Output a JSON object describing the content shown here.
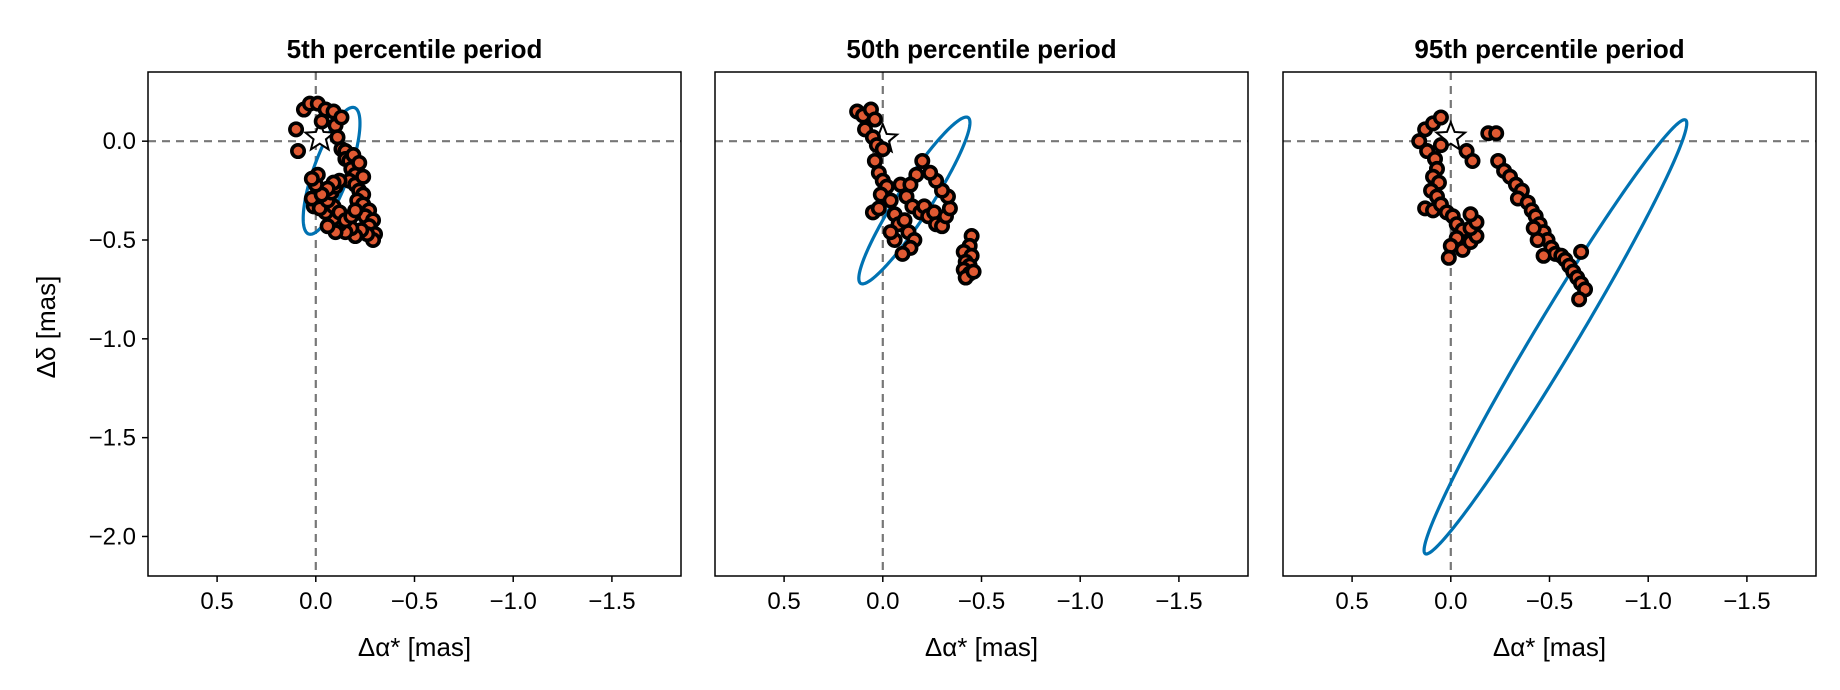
{
  "figure": {
    "ylabel": "Δδ [mas]",
    "xlabel": "Δα* [mas]",
    "colors": {
      "orbit": "#0072b2",
      "marker_fill": "#e05a33",
      "marker_edge": "#000000",
      "refline": "#777777"
    }
  },
  "chart_data": [
    {
      "type": "scatter",
      "title": "5th percentile period",
      "xlabel": "Δα* [mas]",
      "ylabel": "Δδ [mas]",
      "xlim": [
        0.85,
        -1.85
      ],
      "ylim": [
        -2.2,
        0.35
      ],
      "xticks": [
        0.5,
        0.0,
        -0.5,
        -1.0,
        -1.5
      ],
      "xtick_labels": [
        "0.5",
        "0.0",
        "−0.5",
        "−1.0",
        "−1.5"
      ],
      "yticks": [
        0.0,
        -0.5,
        -1.0,
        -1.5,
        -2.0
      ],
      "ytick_labels": [
        "0.0",
        "−0.5",
        "−1.0",
        "−1.5",
        "−2.0"
      ],
      "reference_lines": {
        "x": 0.0,
        "y": 0.0
      },
      "star": {
        "x": -0.02,
        "y": 0.02
      },
      "orbit": {
        "center": [
          -0.08,
          -0.15
        ],
        "a": 0.34,
        "b": 0.09,
        "angle_deg": -70
      },
      "points": [
        {
          "x": 0.1,
          "y": 0.06
        },
        {
          "x": 0.06,
          "y": 0.16
        },
        {
          "x": 0.03,
          "y": 0.19
        },
        {
          "x": -0.01,
          "y": 0.19
        },
        {
          "x": 0.09,
          "y": -0.05
        },
        {
          "x": -0.03,
          "y": 0.1
        },
        {
          "x": -0.05,
          "y": 0.16
        },
        {
          "x": -0.09,
          "y": 0.15
        },
        {
          "x": -0.1,
          "y": 0.08
        },
        {
          "x": -0.13,
          "y": 0.12
        },
        {
          "x": -0.11,
          "y": 0.02
        },
        {
          "x": -0.13,
          "y": -0.04
        },
        {
          "x": -0.15,
          "y": -0.05
        },
        {
          "x": -0.15,
          "y": -0.09
        },
        {
          "x": -0.17,
          "y": -0.1
        },
        {
          "x": -0.18,
          "y": -0.14
        },
        {
          "x": -0.2,
          "y": -0.17
        },
        {
          "x": -0.17,
          "y": -0.2
        },
        {
          "x": -0.2,
          "y": -0.22
        },
        {
          "x": -0.22,
          "y": -0.25
        },
        {
          "x": -0.24,
          "y": -0.27
        },
        {
          "x": -0.21,
          "y": -0.3
        },
        {
          "x": -0.24,
          "y": -0.32
        },
        {
          "x": -0.27,
          "y": -0.35
        },
        {
          "x": -0.25,
          "y": -0.38
        },
        {
          "x": -0.29,
          "y": -0.4
        },
        {
          "x": -0.27,
          "y": -0.43
        },
        {
          "x": -0.3,
          "y": -0.47
        },
        {
          "x": -0.29,
          "y": -0.5
        },
        {
          "x": -0.26,
          "y": -0.47
        },
        {
          "x": -0.23,
          "y": -0.45
        },
        {
          "x": -0.2,
          "y": -0.48
        },
        {
          "x": -0.18,
          "y": -0.44
        },
        {
          "x": -0.15,
          "y": -0.46
        },
        {
          "x": -0.12,
          "y": -0.42
        },
        {
          "x": -0.1,
          "y": -0.46
        },
        {
          "x": -0.09,
          "y": -0.39
        },
        {
          "x": -0.06,
          "y": -0.43
        },
        {
          "x": -0.05,
          "y": -0.36
        },
        {
          "x": -0.09,
          "y": -0.33
        },
        {
          "x": -0.12,
          "y": -0.36
        },
        {
          "x": -0.15,
          "y": -0.4
        },
        {
          "x": -0.18,
          "y": -0.38
        },
        {
          "x": -0.2,
          "y": -0.35
        },
        {
          "x": 0.01,
          "y": -0.33
        },
        {
          "x": 0.02,
          "y": -0.29
        },
        {
          "x": -0.02,
          "y": -0.34
        },
        {
          "x": -0.06,
          "y": -0.3
        },
        {
          "x": -0.08,
          "y": -0.26
        },
        {
          "x": -0.1,
          "y": -0.23
        },
        {
          "x": -0.12,
          "y": -0.2
        },
        {
          "x": -0.09,
          "y": -0.21
        },
        {
          "x": -0.06,
          "y": -0.24
        },
        {
          "x": -0.03,
          "y": -0.27
        },
        {
          "x": 0.0,
          "y": -0.22
        },
        {
          "x": -0.01,
          "y": -0.17
        },
        {
          "x": 0.02,
          "y": -0.19
        },
        {
          "x": -0.19,
          "y": -0.07
        },
        {
          "x": -0.22,
          "y": -0.11
        },
        {
          "x": -0.24,
          "y": -0.18
        }
      ]
    },
    {
      "type": "scatter",
      "title": "50th percentile period",
      "xlabel": "Δα* [mas]",
      "ylabel": "",
      "xlim": [
        0.85,
        -1.85
      ],
      "ylim": [
        -2.2,
        0.35
      ],
      "xticks": [
        0.5,
        0.0,
        -0.5,
        -1.0,
        -1.5
      ],
      "xtick_labels": [
        "0.5",
        "0.0",
        "−0.5",
        "−1.0",
        "−1.5"
      ],
      "yticks": [],
      "ytick_labels": [],
      "reference_lines": {
        "x": 0.0,
        "y": 0.0
      },
      "star": {
        "x": 0.0,
        "y": 0.01
      },
      "orbit": {
        "center": [
          -0.16,
          -0.3
        ],
        "a": 0.5,
        "b": 0.085,
        "angle_deg": -57
      },
      "points": [
        {
          "x": 0.13,
          "y": 0.15
        },
        {
          "x": 0.1,
          "y": 0.13
        },
        {
          "x": 0.06,
          "y": 0.16
        },
        {
          "x": 0.04,
          "y": 0.11
        },
        {
          "x": 0.09,
          "y": 0.06
        },
        {
          "x": 0.05,
          "y": 0.02
        },
        {
          "x": 0.03,
          "y": -0.02
        },
        {
          "x": 0.0,
          "y": -0.04
        },
        {
          "x": 0.04,
          "y": -0.1
        },
        {
          "x": 0.02,
          "y": -0.16
        },
        {
          "x": 0.0,
          "y": -0.2
        },
        {
          "x": -0.02,
          "y": -0.23
        },
        {
          "x": 0.01,
          "y": -0.27
        },
        {
          "x": 0.05,
          "y": -0.36
        },
        {
          "x": 0.02,
          "y": -0.34
        },
        {
          "x": -0.04,
          "y": -0.3
        },
        {
          "x": -0.06,
          "y": -0.37
        },
        {
          "x": -0.08,
          "y": -0.42
        },
        {
          "x": -0.11,
          "y": -0.4
        },
        {
          "x": -0.13,
          "y": -0.46
        },
        {
          "x": -0.16,
          "y": -0.5
        },
        {
          "x": -0.14,
          "y": -0.54
        },
        {
          "x": -0.1,
          "y": -0.57
        },
        {
          "x": -0.06,
          "y": -0.5
        },
        {
          "x": -0.04,
          "y": -0.46
        },
        {
          "x": -0.09,
          "y": -0.22
        },
        {
          "x": -0.12,
          "y": -0.28
        },
        {
          "x": -0.15,
          "y": -0.33
        },
        {
          "x": -0.19,
          "y": -0.36
        },
        {
          "x": -0.21,
          "y": -0.33
        },
        {
          "x": -0.23,
          "y": -0.38
        },
        {
          "x": -0.26,
          "y": -0.36
        },
        {
          "x": -0.27,
          "y": -0.42
        },
        {
          "x": -0.3,
          "y": -0.43
        },
        {
          "x": -0.32,
          "y": -0.38
        },
        {
          "x": -0.34,
          "y": -0.34
        },
        {
          "x": -0.33,
          "y": -0.28
        },
        {
          "x": -0.3,
          "y": -0.25
        },
        {
          "x": -0.27,
          "y": -0.2
        },
        {
          "x": -0.24,
          "y": -0.16
        },
        {
          "x": -0.2,
          "y": -0.1
        },
        {
          "x": -0.17,
          "y": -0.17
        },
        {
          "x": -0.14,
          "y": -0.22
        },
        {
          "x": -0.45,
          "y": -0.48
        },
        {
          "x": -0.44,
          "y": -0.53
        },
        {
          "x": -0.41,
          "y": -0.56
        },
        {
          "x": -0.45,
          "y": -0.58
        },
        {
          "x": -0.42,
          "y": -0.61
        },
        {
          "x": -0.44,
          "y": -0.63
        },
        {
          "x": -0.41,
          "y": -0.65
        },
        {
          "x": -0.44,
          "y": -0.67
        },
        {
          "x": -0.42,
          "y": -0.69
        },
        {
          "x": -0.46,
          "y": -0.66
        }
      ]
    },
    {
      "type": "scatter",
      "title": "95th percentile period",
      "xlabel": "Δα* [mas]",
      "ylabel": "",
      "xlim": [
        0.85,
        -1.85
      ],
      "ylim": [
        -2.2,
        0.35
      ],
      "xticks": [
        0.5,
        0.0,
        -0.5,
        -1.0,
        -1.5
      ],
      "xtick_labels": [
        "0.5",
        "0.0",
        "−0.5",
        "−1.0",
        "−1.5"
      ],
      "yticks": [],
      "ytick_labels": [],
      "reference_lines": {
        "x": 0.0,
        "y": 0.0
      },
      "star": {
        "x": 0.0,
        "y": 0.02
      },
      "orbit": {
        "center": [
          -0.53,
          -0.99
        ],
        "a": 1.28,
        "b": 0.105,
        "angle_deg": -59
      },
      "points": [
        {
          "x": 0.16,
          "y": 0.0
        },
        {
          "x": 0.13,
          "y": 0.06
        },
        {
          "x": 0.09,
          "y": 0.09
        },
        {
          "x": 0.05,
          "y": 0.12
        },
        {
          "x": 0.12,
          "y": -0.05
        },
        {
          "x": 0.08,
          "y": -0.09
        },
        {
          "x": 0.05,
          "y": -0.02
        },
        {
          "x": 0.07,
          "y": -0.14
        },
        {
          "x": 0.09,
          "y": -0.18
        },
        {
          "x": 0.06,
          "y": -0.21
        },
        {
          "x": 0.1,
          "y": -0.25
        },
        {
          "x": 0.07,
          "y": -0.28
        },
        {
          "x": 0.13,
          "y": -0.34
        },
        {
          "x": 0.09,
          "y": -0.35
        },
        {
          "x": 0.05,
          "y": -0.32
        },
        {
          "x": 0.02,
          "y": -0.36
        },
        {
          "x": -0.01,
          "y": -0.38
        },
        {
          "x": -0.03,
          "y": -0.42
        },
        {
          "x": -0.06,
          "y": -0.45
        },
        {
          "x": -0.03,
          "y": -0.49
        },
        {
          "x": 0.0,
          "y": -0.53
        },
        {
          "x": -0.06,
          "y": -0.55
        },
        {
          "x": -0.1,
          "y": -0.51
        },
        {
          "x": -0.13,
          "y": -0.48
        },
        {
          "x": -0.1,
          "y": -0.44
        },
        {
          "x": -0.13,
          "y": -0.41
        },
        {
          "x": -0.1,
          "y": -0.37
        },
        {
          "x": 0.01,
          "y": -0.59
        },
        {
          "x": -0.08,
          "y": -0.05
        },
        {
          "x": -0.11,
          "y": -0.1
        },
        {
          "x": -0.19,
          "y": 0.04
        },
        {
          "x": -0.23,
          "y": 0.04
        },
        {
          "x": -0.24,
          "y": -0.1
        },
        {
          "x": -0.27,
          "y": -0.15
        },
        {
          "x": -0.3,
          "y": -0.18
        },
        {
          "x": -0.33,
          "y": -0.22
        },
        {
          "x": -0.36,
          "y": -0.25
        },
        {
          "x": -0.34,
          "y": -0.29
        },
        {
          "x": -0.39,
          "y": -0.31
        },
        {
          "x": -0.41,
          "y": -0.35
        },
        {
          "x": -0.43,
          "y": -0.38
        },
        {
          "x": -0.45,
          "y": -0.42
        },
        {
          "x": -0.47,
          "y": -0.46
        },
        {
          "x": -0.49,
          "y": -0.5
        },
        {
          "x": -0.51,
          "y": -0.54
        },
        {
          "x": -0.53,
          "y": -0.57
        },
        {
          "x": -0.56,
          "y": -0.58
        },
        {
          "x": -0.58,
          "y": -0.6
        },
        {
          "x": -0.6,
          "y": -0.63
        },
        {
          "x": -0.62,
          "y": -0.66
        },
        {
          "x": -0.64,
          "y": -0.69
        },
        {
          "x": -0.66,
          "y": -0.72
        },
        {
          "x": -0.68,
          "y": -0.75
        },
        {
          "x": -0.65,
          "y": -0.8
        },
        {
          "x": -0.66,
          "y": -0.56
        },
        {
          "x": -0.47,
          "y": -0.58
        },
        {
          "x": -0.44,
          "y": -0.5
        },
        {
          "x": -0.42,
          "y": -0.44
        }
      ]
    }
  ]
}
